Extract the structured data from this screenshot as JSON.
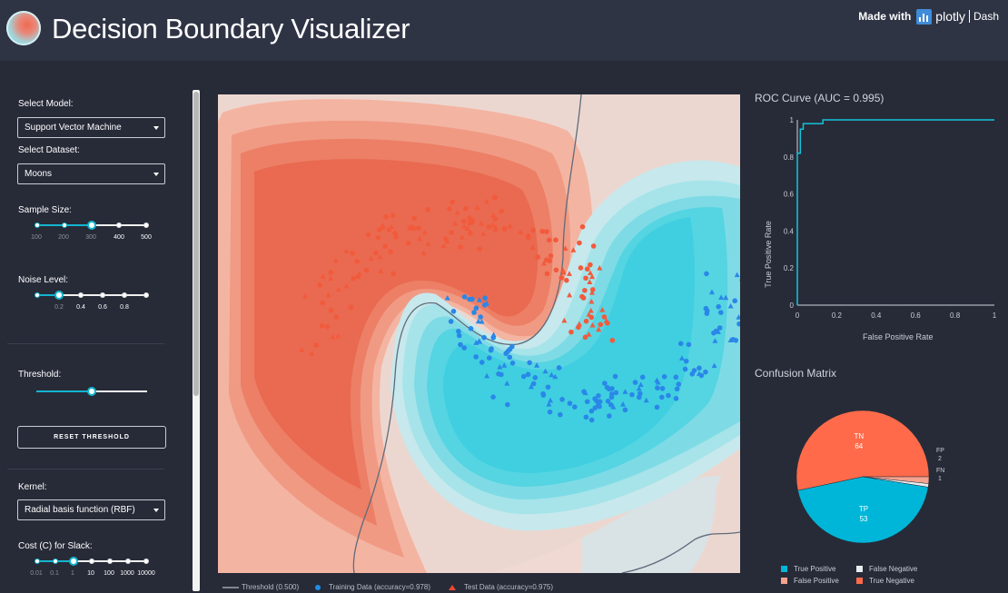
{
  "header": {
    "title": "Decision Boundary Visualizer",
    "made_with": "Made with",
    "plotly": "plotly",
    "dash": "Dash"
  },
  "sidebar": {
    "model_label": "Select Model:",
    "model_value": "Support Vector Machine",
    "dataset_label": "Select Dataset:",
    "dataset_value": "Moons",
    "sample_size_label": "Sample Size:",
    "sample_size_marks": [
      "100",
      "200",
      "300",
      "400",
      "500"
    ],
    "sample_size_value": 300,
    "noise_label": "Noise Level:",
    "noise_marks": [
      "0.2",
      "0.4",
      "0.6",
      "0.8"
    ],
    "noise_value": 0.2,
    "threshold_label": "Threshold:",
    "threshold_value": 0.5,
    "reset_button": "RESET THRESHOLD",
    "kernel_label": "Kernel:",
    "kernel_value": "Radial basis function (RBF)",
    "cost_label": "Cost (C) for Slack:",
    "cost_marks": [
      "0.01",
      "0.1",
      "1",
      "10",
      "100",
      "1000",
      "10000"
    ],
    "cost_value": 1
  },
  "legend": {
    "threshold": "Threshold (0.500)",
    "training": "Training Data (accuracy=0.978)",
    "test": "Test Data (accuracy=0.975)"
  },
  "colors": {
    "background": "#272b38",
    "header": "#2f3445",
    "accent": "#13b5cf",
    "positive": "#f25a3c",
    "negative": "#2a87e8",
    "boundary_red": "#ec7258",
    "boundary_cyan": "#44d6e6",
    "roc_line": "#13c3da"
  },
  "chart_data": [
    {
      "type": "scatter",
      "title": "",
      "contour": true,
      "legend_placement": "bottom",
      "series": [
        {
          "name": "Training Data (accuracy=0.978)",
          "marker": "circle"
        },
        {
          "name": "Test Data (accuracy=0.975)",
          "marker": "triangle"
        }
      ]
    },
    {
      "type": "line",
      "title": "ROC Curve (AUC = 0.995)",
      "xlabel": "False Positive Rate",
      "ylabel": "True Positive Rate",
      "xlim": [
        0,
        1
      ],
      "ylim": [
        0,
        1
      ],
      "xticks": [
        "0",
        "0.2",
        "0.4",
        "0.6",
        "0.8",
        "1"
      ],
      "yticks": [
        "0",
        "0.2",
        "0.4",
        "0.6",
        "0.8",
        "1"
      ],
      "x": [
        0,
        0,
        0.015,
        0.015,
        0.03,
        0.03,
        0.06,
        0.06,
        0.13,
        0.13,
        1
      ],
      "y": [
        0,
        0.82,
        0.82,
        0.95,
        0.95,
        0.98,
        0.98,
        0.98,
        0.98,
        1,
        1
      ]
    },
    {
      "type": "pie",
      "title": "Confusion Matrix",
      "labels": [
        "TN",
        "FP",
        "FN",
        "TP"
      ],
      "values": [
        64,
        2,
        1,
        53
      ],
      "colors": [
        "#ff6b4a",
        "#f4a38f",
        "#e9edf0",
        "#00b6d8"
      ],
      "legend": [
        "True Positive",
        "False Negative",
        "False Positive",
        "True Negative"
      ],
      "legend_colors": [
        "#00b6d8",
        "#e9edf0",
        "#f4a38f",
        "#ff6b4a"
      ]
    }
  ]
}
